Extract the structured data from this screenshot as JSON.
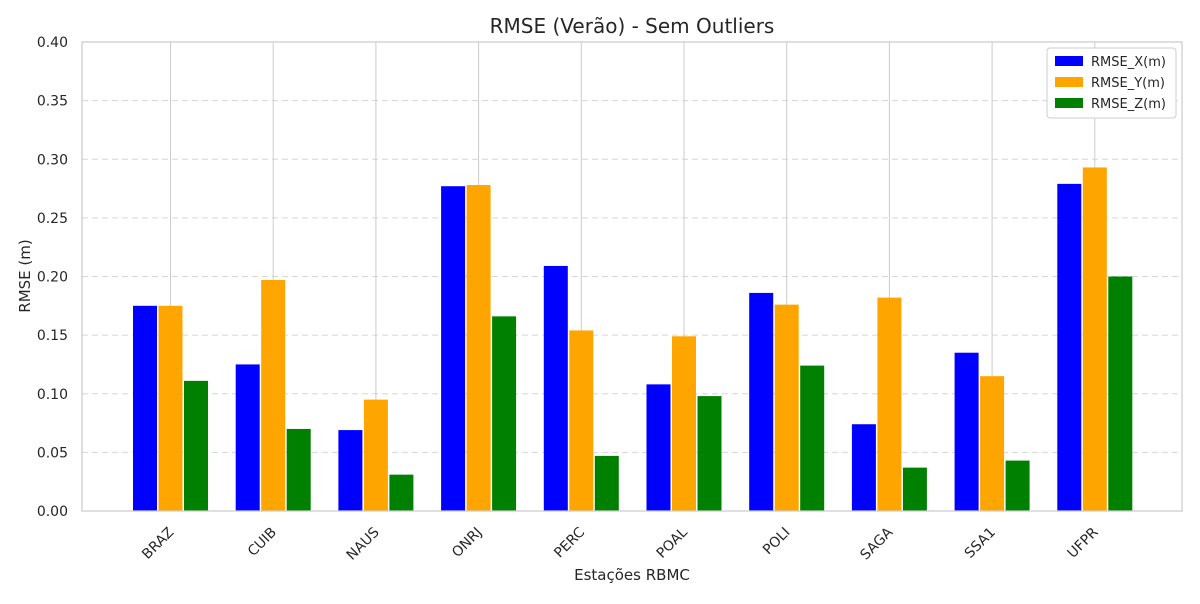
{
  "chart_data": {
    "type": "bar",
    "title": "RMSE (Verão) - Sem Outliers",
    "xlabel": "Estações RBMC",
    "ylabel": "RMSE (m)",
    "ylim": [
      0,
      0.4
    ],
    "yticks": [
      "0.00",
      "0.05",
      "0.10",
      "0.15",
      "0.20",
      "0.25",
      "0.30",
      "0.35",
      "0.40"
    ],
    "grid": true,
    "legend_position": "top-right",
    "categories": [
      "BRAZ",
      "CUIB",
      "NAUS",
      "ONRJ",
      "PERC",
      "POAL",
      "POLI",
      "SAGA",
      "SSA1",
      "UFPR"
    ],
    "series": [
      {
        "name": "RMSE_X(m)",
        "color": "#0000ff",
        "values": [
          0.175,
          0.125,
          0.069,
          0.277,
          0.209,
          0.108,
          0.186,
          0.074,
          0.135,
          0.279
        ]
      },
      {
        "name": "RMSE_Y(m)",
        "color": "#ffa500",
        "values": [
          0.175,
          0.197,
          0.095,
          0.278,
          0.154,
          0.149,
          0.176,
          0.182,
          0.115,
          0.293
        ]
      },
      {
        "name": "RMSE_Z(m)",
        "color": "#008000",
        "values": [
          0.111,
          0.07,
          0.031,
          0.166,
          0.047,
          0.098,
          0.124,
          0.037,
          0.043,
          0.2
        ]
      }
    ]
  }
}
